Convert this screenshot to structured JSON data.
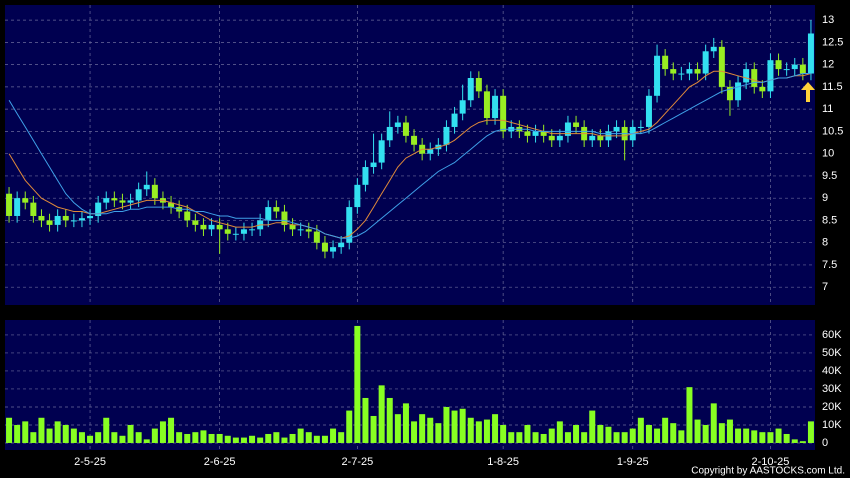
{
  "chart_data": {
    "type": "candlestick",
    "grid": true,
    "up_color": "#33e0f0",
    "down_color": "#99ee22",
    "categories": [
      null,
      null,
      null,
      null,
      null,
      null,
      null,
      null,
      null,
      null,
      "2-5-25",
      null,
      null,
      null,
      null,
      null,
      null,
      null,
      null,
      null,
      null,
      null,
      null,
      null,
      null,
      null,
      "2-6-25",
      null,
      null,
      null,
      null,
      null,
      null,
      null,
      null,
      null,
      null,
      null,
      null,
      null,
      null,
      null,
      null,
      "2-7-25",
      null,
      null,
      null,
      null,
      null,
      null,
      null,
      null,
      null,
      null,
      null,
      null,
      null,
      null,
      null,
      null,
      null,
      "1-8-25",
      null,
      null,
      null,
      null,
      null,
      null,
      null,
      null,
      null,
      null,
      null,
      null,
      null,
      null,
      null,
      "1-9-25",
      null,
      null,
      null,
      null,
      null,
      null,
      null,
      null,
      null,
      null,
      null,
      null,
      null,
      null,
      null,
      null,
      "2-10-25",
      null,
      null,
      null,
      null,
      null
    ],
    "ohlc": [
      [
        9.1,
        9.25,
        8.45,
        8.6
      ],
      [
        8.6,
        9.15,
        8.45,
        9.0
      ],
      [
        9.0,
        9.15,
        8.75,
        8.9
      ],
      [
        8.9,
        9.05,
        8.45,
        8.6
      ],
      [
        8.6,
        8.75,
        8.35,
        8.5
      ],
      [
        8.5,
        8.65,
        8.25,
        8.4
      ],
      [
        8.4,
        8.75,
        8.25,
        8.6
      ],
      [
        8.6,
        8.75,
        8.35,
        8.5
      ],
      [
        8.5,
        8.65,
        8.35,
        8.5
      ],
      [
        8.5,
        8.7,
        8.35,
        8.55
      ],
      [
        8.55,
        8.75,
        8.4,
        8.6
      ],
      [
        8.6,
        9.05,
        8.45,
        8.9
      ],
      [
        8.9,
        9.15,
        8.75,
        9.0
      ],
      [
        9.0,
        9.15,
        8.8,
        8.95
      ],
      [
        8.95,
        9.1,
        8.75,
        8.9
      ],
      [
        8.9,
        9.1,
        8.75,
        8.95
      ],
      [
        8.95,
        9.35,
        8.8,
        9.2
      ],
      [
        9.2,
        9.6,
        9.05,
        9.3
      ],
      [
        9.3,
        9.45,
        8.85,
        9.0
      ],
      [
        9.0,
        9.15,
        8.75,
        8.9
      ],
      [
        8.9,
        9.05,
        8.65,
        8.8
      ],
      [
        8.8,
        8.95,
        8.55,
        8.7
      ],
      [
        8.7,
        8.85,
        8.35,
        8.5
      ],
      [
        8.5,
        8.65,
        8.25,
        8.4
      ],
      [
        8.4,
        8.55,
        8.15,
        8.3
      ],
      [
        8.3,
        8.55,
        8.15,
        8.4
      ],
      [
        8.4,
        8.55,
        7.75,
        8.3
      ],
      [
        8.3,
        8.45,
        8.05,
        8.2
      ],
      [
        8.2,
        8.35,
        8.05,
        8.2
      ],
      [
        8.2,
        8.45,
        8.05,
        8.3
      ],
      [
        8.3,
        8.45,
        8.15,
        8.3
      ],
      [
        8.3,
        8.65,
        8.15,
        8.5
      ],
      [
        8.5,
        8.95,
        8.35,
        8.8
      ],
      [
        8.8,
        8.95,
        8.55,
        8.7
      ],
      [
        8.7,
        8.85,
        8.25,
        8.4
      ],
      [
        8.4,
        8.55,
        8.15,
        8.3
      ],
      [
        8.3,
        8.45,
        8.15,
        8.3
      ],
      [
        8.3,
        8.45,
        8.1,
        8.25
      ],
      [
        8.25,
        8.4,
        7.85,
        8.0
      ],
      [
        8.0,
        8.15,
        7.65,
        7.8
      ],
      [
        7.8,
        8.05,
        7.65,
        7.9
      ],
      [
        7.9,
        8.15,
        7.75,
        8.0
      ],
      [
        8.0,
        8.95,
        7.85,
        8.8
      ],
      [
        8.8,
        9.45,
        8.65,
        9.3
      ],
      [
        9.3,
        9.85,
        9.15,
        9.7
      ],
      [
        9.7,
        10.45,
        9.55,
        9.8
      ],
      [
        9.8,
        10.45,
        9.65,
        10.3
      ],
      [
        10.3,
        10.95,
        10.15,
        10.6
      ],
      [
        10.6,
        10.85,
        10.45,
        10.7
      ],
      [
        10.7,
        10.85,
        10.25,
        10.4
      ],
      [
        10.4,
        10.55,
        10.05,
        10.2
      ],
      [
        10.2,
        10.35,
        9.85,
        10.0
      ],
      [
        10.0,
        10.25,
        9.85,
        10.1
      ],
      [
        10.1,
        10.35,
        9.95,
        10.2
      ],
      [
        10.2,
        10.75,
        10.05,
        10.6
      ],
      [
        10.6,
        11.05,
        10.45,
        10.9
      ],
      [
        10.9,
        11.55,
        10.75,
        11.2
      ],
      [
        11.2,
        11.85,
        11.05,
        11.7
      ],
      [
        11.7,
        11.85,
        11.25,
        11.4
      ],
      [
        11.4,
        11.55,
        10.65,
        10.8
      ],
      [
        10.8,
        11.45,
        10.65,
        11.3
      ],
      [
        11.3,
        11.45,
        10.35,
        10.5
      ],
      [
        10.5,
        10.75,
        10.35,
        10.6
      ],
      [
        10.6,
        10.75,
        10.35,
        10.5
      ],
      [
        10.5,
        10.65,
        10.25,
        10.4
      ],
      [
        10.4,
        10.65,
        10.25,
        10.5
      ],
      [
        10.5,
        10.65,
        10.25,
        10.4
      ],
      [
        10.4,
        10.55,
        10.15,
        10.3
      ],
      [
        10.3,
        10.55,
        10.15,
        10.4
      ],
      [
        10.4,
        10.85,
        10.25,
        10.7
      ],
      [
        10.7,
        10.85,
        10.45,
        10.6
      ],
      [
        10.6,
        10.75,
        10.15,
        10.3
      ],
      [
        10.3,
        10.55,
        10.15,
        10.4
      ],
      [
        10.4,
        10.55,
        10.15,
        10.3
      ],
      [
        10.3,
        10.65,
        10.15,
        10.5
      ],
      [
        10.5,
        10.75,
        10.35,
        10.6
      ],
      [
        10.6,
        10.75,
        9.85,
        10.3
      ],
      [
        10.3,
        10.75,
        10.15,
        10.6
      ],
      [
        10.6,
        10.75,
        10.45,
        10.6
      ],
      [
        10.6,
        11.45,
        10.45,
        11.3
      ],
      [
        11.3,
        12.45,
        11.15,
        12.2
      ],
      [
        12.2,
        12.35,
        11.75,
        11.9
      ],
      [
        11.9,
        12.05,
        11.65,
        11.8
      ],
      [
        11.8,
        11.95,
        11.65,
        11.8
      ],
      [
        11.8,
        12.05,
        11.65,
        11.9
      ],
      [
        11.9,
        12.05,
        11.65,
        11.8
      ],
      [
        11.8,
        12.45,
        11.65,
        12.3
      ],
      [
        12.3,
        12.6,
        12.15,
        12.4
      ],
      [
        12.4,
        12.55,
        11.35,
        11.5
      ],
      [
        11.5,
        11.65,
        10.85,
        11.2
      ],
      [
        11.2,
        11.75,
        11.05,
        11.6
      ],
      [
        11.6,
        12.05,
        11.45,
        11.9
      ],
      [
        11.9,
        12.05,
        11.35,
        11.5
      ],
      [
        11.5,
        11.65,
        11.25,
        11.4
      ],
      [
        11.4,
        12.25,
        11.25,
        12.1
      ],
      [
        12.1,
        12.25,
        11.75,
        11.9
      ],
      [
        11.9,
        12.05,
        11.75,
        11.9
      ],
      [
        11.9,
        12.15,
        11.75,
        12.0
      ],
      [
        12.0,
        12.15,
        11.65,
        11.8
      ],
      [
        11.8,
        13.0,
        11.65,
        12.7
      ]
    ],
    "lines": [
      {
        "color": "#e08a3a",
        "values": [
          10.0,
          9.7,
          9.4,
          9.2,
          9.0,
          8.9,
          8.8,
          8.75,
          8.7,
          8.7,
          8.65,
          8.65,
          8.7,
          8.75,
          8.8,
          8.85,
          8.9,
          8.95,
          8.95,
          8.95,
          8.9,
          8.85,
          8.8,
          8.7,
          8.6,
          8.5,
          8.45,
          8.4,
          8.35,
          8.35,
          8.35,
          8.4,
          8.4,
          8.45,
          8.45,
          8.4,
          8.4,
          8.35,
          8.3,
          8.2,
          8.15,
          8.1,
          8.15,
          8.3,
          8.5,
          8.8,
          9.1,
          9.4,
          9.7,
          9.9,
          10.0,
          10.1,
          10.1,
          10.15,
          10.2,
          10.3,
          10.45,
          10.6,
          10.7,
          10.75,
          10.75,
          10.75,
          10.7,
          10.65,
          10.6,
          10.55,
          10.5,
          10.45,
          10.45,
          10.45,
          10.45,
          10.45,
          10.45,
          10.4,
          10.4,
          10.4,
          10.4,
          10.45,
          10.5,
          10.55,
          10.7,
          10.9,
          11.1,
          11.3,
          11.5,
          11.6,
          11.75,
          11.85,
          11.85,
          11.8,
          11.75,
          11.7,
          11.65,
          11.6,
          11.65,
          11.7,
          11.7,
          11.75,
          11.75,
          11.8
        ]
      },
      {
        "color": "#3fa0e8",
        "values": [
          11.2,
          10.9,
          10.6,
          10.3,
          10.0,
          9.7,
          9.4,
          9.1,
          8.9,
          8.75,
          8.65,
          8.65,
          8.65,
          8.7,
          8.7,
          8.75,
          8.75,
          8.8,
          8.8,
          8.8,
          8.8,
          8.75,
          8.75,
          8.7,
          8.7,
          8.65,
          8.6,
          8.6,
          8.55,
          8.55,
          8.55,
          8.55,
          8.5,
          8.5,
          8.5,
          8.45,
          8.4,
          8.35,
          8.3,
          8.2,
          8.15,
          8.1,
          8.1,
          8.15,
          8.25,
          8.4,
          8.55,
          8.7,
          8.85,
          9.0,
          9.15,
          9.3,
          9.45,
          9.6,
          9.7,
          9.8,
          9.95,
          10.1,
          10.25,
          10.4,
          10.5,
          10.55,
          10.55,
          10.55,
          10.55,
          10.5,
          10.5,
          10.5,
          10.5,
          10.5,
          10.5,
          10.5,
          10.5,
          10.45,
          10.45,
          10.45,
          10.45,
          10.45,
          10.45,
          10.5,
          10.6,
          10.7,
          10.8,
          10.9,
          11.0,
          11.1,
          11.2,
          11.3,
          11.4,
          11.45,
          11.5,
          11.55,
          11.6,
          11.6,
          11.65,
          11.7,
          11.7,
          11.75,
          11.8,
          11.8
        ]
      }
    ],
    "ylim": [
      6.6,
      13.34
    ],
    "yticks": [
      7,
      7.5,
      8,
      8.5,
      9,
      9.5,
      10,
      10.5,
      11,
      11.5,
      12,
      12.5,
      13
    ],
    "volume": {
      "color": "#88ff22",
      "ylim": [
        -3900,
        68300
      ],
      "yticks": [
        {
          "value": 0,
          "label": "0"
        },
        {
          "value": 10000,
          "label": "10K"
        },
        {
          "value": 20000,
          "label": "20K"
        },
        {
          "value": 30000,
          "label": "30K"
        },
        {
          "value": 40000,
          "label": "40K"
        },
        {
          "value": 50000,
          "label": "50K"
        },
        {
          "value": 60000,
          "label": "60K"
        }
      ],
      "values": [
        14000,
        10000,
        12000,
        6000,
        14000,
        8000,
        12000,
        10000,
        8000,
        6000,
        4000,
        6000,
        14000,
        6000,
        4000,
        10000,
        6000,
        2000,
        8000,
        12000,
        14000,
        6000,
        5000,
        6000,
        7000,
        5000,
        5000,
        4000,
        3000,
        3000,
        4000,
        3000,
        5000,
        6000,
        3000,
        5000,
        8000,
        6000,
        4000,
        4000,
        8000,
        6000,
        18000,
        65000,
        25000,
        15000,
        32000,
        25000,
        16000,
        22000,
        12000,
        16000,
        14000,
        11000,
        20000,
        18000,
        19000,
        14000,
        12000,
        13000,
        16000,
        10000,
        6000,
        6000,
        10000,
        6000,
        5000,
        8000,
        12000,
        6000,
        10000,
        6000,
        18000,
        10000,
        9000,
        6000,
        6000,
        8000,
        14000,
        10000,
        8000,
        14000,
        11000,
        7000,
        31000,
        13000,
        10000,
        22000,
        11000,
        13000,
        8000,
        8000,
        7000,
        6000,
        6000,
        8000,
        5000,
        2000,
        1000,
        12000
      ]
    }
  },
  "copyright": "Copyright by AASTOCKS.com Ltd."
}
